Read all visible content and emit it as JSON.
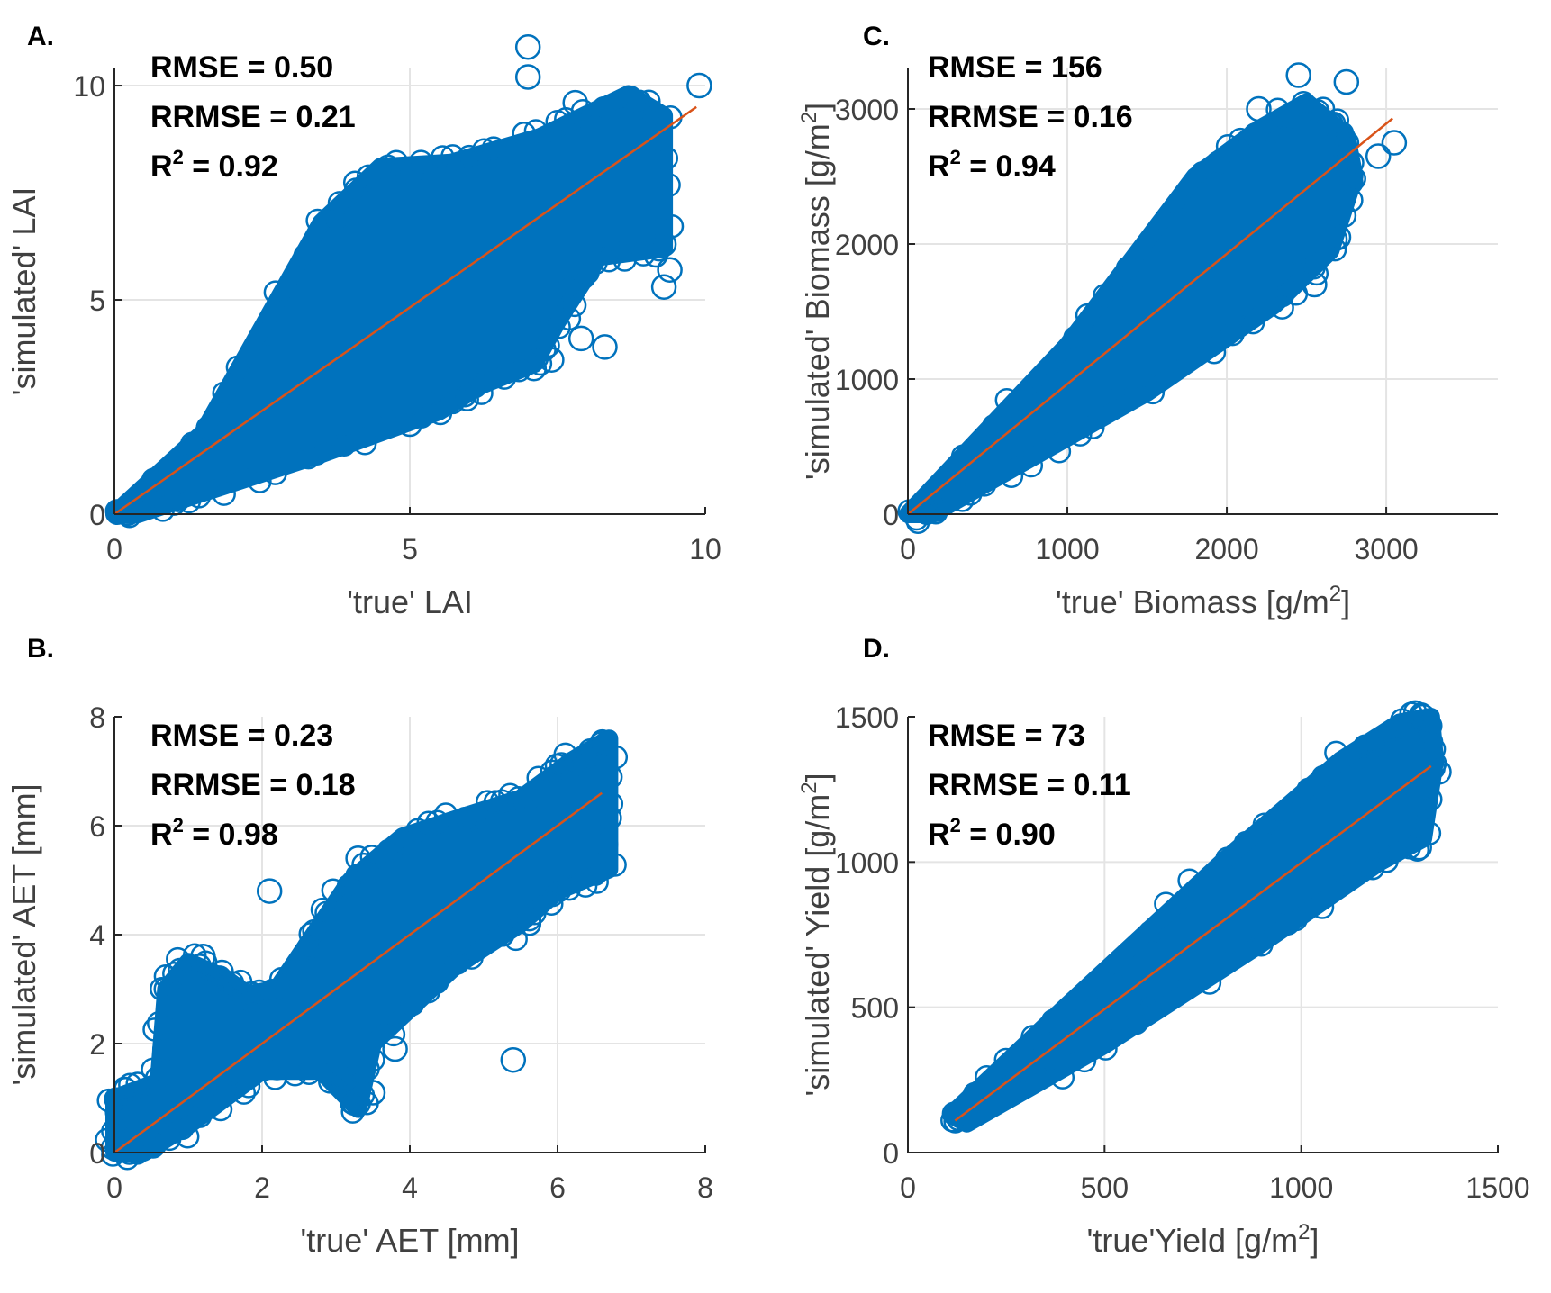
{
  "chart_data": [
    {
      "id": "A",
      "type": "scatter",
      "panel_label": "A.",
      "xlabel_prefix": "'true' LAI",
      "ylabel_prefix": "'simulated' LAI",
      "unit": "",
      "xlim": [
        0,
        10
      ],
      "ylim": [
        0,
        10.4
      ],
      "xticks": [
        0,
        5,
        10
      ],
      "yticks": [
        0,
        5,
        10
      ],
      "grid": true,
      "stats": {
        "rmse": "RMSE = 0.50",
        "rrmse": "RRMSE = 0.21",
        "r2_prefix": "R",
        "r2_sup": "2",
        "r2_value": " = 0.92"
      },
      "marker_color": "#0072BD",
      "line_color": "#D95319",
      "fit_line": {
        "x": [
          0,
          9.85
        ],
        "y": [
          0,
          9.5
        ]
      },
      "cloud": [
        [
          0,
          0
        ],
        [
          1.5,
          1.9
        ],
        [
          3.5,
          6.8
        ],
        [
          4.5,
          8.1
        ],
        [
          5.7,
          8.2
        ],
        [
          7.2,
          8.8
        ],
        [
          8.7,
          9.8
        ],
        [
          9.3,
          9.3
        ],
        [
          9.3,
          6.2
        ],
        [
          8.2,
          6.0
        ],
        [
          7.5,
          4.5
        ],
        [
          7.1,
          3.5
        ],
        [
          6.2,
          3.0
        ],
        [
          5.5,
          2.4
        ],
        [
          3.5,
          1.4
        ],
        [
          1.5,
          0.5
        ],
        [
          0.4,
          0
        ]
      ],
      "outliers": [
        [
          7.0,
          10.9
        ],
        [
          7.0,
          10.2
        ],
        [
          9.9,
          10.0
        ],
        [
          9.3,
          6.3
        ],
        [
          9.4,
          5.7
        ],
        [
          9.3,
          5.3
        ],
        [
          8.3,
          3.9
        ],
        [
          7.4,
          3.6
        ],
        [
          7.1,
          3.4
        ],
        [
          6.1,
          3.0
        ],
        [
          7.9,
          4.1
        ],
        [
          5.0,
          2.1
        ],
        [
          7.8,
          9.6
        ],
        [
          8.8,
          9.0
        ]
      ]
    },
    {
      "id": "C",
      "type": "scatter",
      "panel_label": "C.",
      "xlabel_prefix": "'true' Biomass [g/m",
      "ylabel_prefix": "'simulated' Biomass [g/m",
      "unit": "2",
      "xlim": [
        0,
        3700
      ],
      "ylim": [
        0,
        3300
      ],
      "xticks": [
        0,
        1000,
        2000,
        3000
      ],
      "yticks": [
        0,
        1000,
        2000,
        3000
      ],
      "grid": true,
      "stats": {
        "rmse": "RMSE = 156",
        "rrmse": "RRMSE = 0.16",
        "r2_prefix": "R",
        "r2_sup": "2",
        "r2_value": " = 0.94"
      },
      "marker_color": "#0072BD",
      "line_color": "#D95319",
      "fit_line": {
        "x": [
          0,
          3040
        ],
        "y": [
          0,
          2930
        ]
      },
      "cloud": [
        [
          0,
          0
        ],
        [
          1000,
          1250
        ],
        [
          1800,
          2500
        ],
        [
          2200,
          2850
        ],
        [
          2500,
          3050
        ],
        [
          2750,
          2800
        ],
        [
          2800,
          2500
        ],
        [
          2650,
          1950
        ],
        [
          2300,
          1550
        ],
        [
          1500,
          900
        ],
        [
          600,
          300
        ],
        [
          150,
          0
        ]
      ],
      "outliers": [
        [
          2450,
          3250
        ],
        [
          2750,
          3200
        ],
        [
          2950,
          2650
        ],
        [
          3050,
          2750
        ],
        [
          2700,
          2050
        ],
        [
          2550,
          1700
        ],
        [
          2200,
          3000
        ]
      ]
    },
    {
      "id": "B",
      "type": "scatter",
      "panel_label": "B.",
      "xlabel_prefix": "'true' AET [mm]",
      "ylabel_prefix": "'simulated' AET [mm]",
      "unit": "",
      "xlim": [
        0,
        8
      ],
      "ylim": [
        0,
        8
      ],
      "xticks": [
        0,
        2,
        4,
        6,
        8
      ],
      "yticks": [
        0,
        2,
        4,
        6,
        8
      ],
      "grid": true,
      "stats": {
        "rmse": "RMSE = 0.23",
        "rrmse": "RRMSE = 0.18",
        "r2_prefix": "R",
        "r2_sup": "2",
        "r2_value": " = 0.98"
      },
      "marker_color": "#0072BD",
      "line_color": "#D95319",
      "fit_line": {
        "x": [
          0,
          6.6
        ],
        "y": [
          0,
          6.6
        ]
      },
      "cloud": [
        [
          0,
          0
        ],
        [
          0,
          1.0
        ],
        [
          0.6,
          1.3
        ],
        [
          0.7,
          3.0
        ],
        [
          1.0,
          3.5
        ],
        [
          1.5,
          3.2
        ],
        [
          1.8,
          2.9
        ],
        [
          2.2,
          3.0
        ],
        [
          2.7,
          4.0
        ],
        [
          3.2,
          5.0
        ],
        [
          3.9,
          5.8
        ],
        [
          4.8,
          6.2
        ],
        [
          5.5,
          6.5
        ],
        [
          6.2,
          7.2
        ],
        [
          6.7,
          7.6
        ],
        [
          6.7,
          5.2
        ],
        [
          6.0,
          4.8
        ],
        [
          5.5,
          4.2
        ],
        [
          4.6,
          3.4
        ],
        [
          3.5,
          2.0
        ],
        [
          3.3,
          0.8
        ],
        [
          2.8,
          1.5
        ],
        [
          2.0,
          1.5
        ],
        [
          1.0,
          0.5
        ],
        [
          0.4,
          0
        ]
      ],
      "outliers": [
        [
          2.1,
          4.8
        ],
        [
          5.4,
          1.7
        ],
        [
          3.3,
          0.9
        ],
        [
          3.5,
          1.1
        ],
        [
          3.8,
          1.9
        ],
        [
          1.2,
          3.6
        ],
        [
          3.3,
          5.4
        ],
        [
          6.6,
          7.5
        ]
      ]
    },
    {
      "id": "D",
      "type": "scatter",
      "panel_label": "D.",
      "xlabel_prefix": "'true'Yield [g/m",
      "ylabel_prefix": "'simulated' Yield [g/m",
      "unit": "2",
      "xlim": [
        0,
        1500
      ],
      "ylim": [
        0,
        1500
      ],
      "xticks": [
        0,
        500,
        1000,
        1500
      ],
      "yticks": [
        0,
        500,
        1000,
        1500
      ],
      "grid": true,
      "stats": {
        "rmse": "RMSE = 73",
        "rrmse": "RRMSE = 0.11",
        "r2_prefix": "R",
        "r2_sup": "2",
        "r2_value": " = 0.90"
      },
      "marker_color": "#0072BD",
      "line_color": "#D95319",
      "fit_line": {
        "x": [
          120,
          1330
        ],
        "y": [
          110,
          1330
        ]
      },
      "cloud": [
        [
          110,
          130
        ],
        [
          400,
          500
        ],
        [
          800,
          1000
        ],
        [
          1100,
          1350
        ],
        [
          1250,
          1480
        ],
        [
          1330,
          1500
        ],
        [
          1340,
          1350
        ],
        [
          1310,
          1080
        ],
        [
          1200,
          1000
        ],
        [
          900,
          720
        ],
        [
          500,
          370
        ],
        [
          150,
          100
        ]
      ],
      "outliers": [
        [
          1310,
          1500
        ],
        [
          1350,
          1310
        ],
        [
          1300,
          1050
        ],
        [
          1280,
          1200
        ],
        [
          1180,
          1400
        ],
        [
          1250,
          1460
        ]
      ]
    }
  ]
}
